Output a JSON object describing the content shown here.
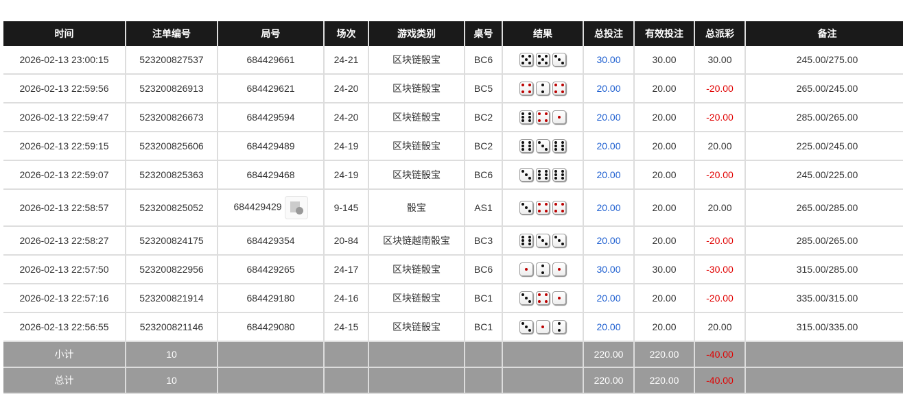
{
  "headers": [
    "时间",
    "注单编号",
    "局号",
    "场次",
    "游戏类别",
    "桌号",
    "结果",
    "总投注",
    "有效投注",
    "总派彩",
    "备注"
  ],
  "rows": [
    {
      "time": "2026-02-13 23:00:15",
      "bet_id": "523200827537",
      "round": "684429661",
      "session": "24-21",
      "game": "区块链骰宝",
      "table": "BC6",
      "dice": [
        5,
        5,
        3
      ],
      "bet": "30.00",
      "valid": "30.00",
      "payout": "30.00",
      "payout_neg": false,
      "note": "245.00/275.00"
    },
    {
      "time": "2026-02-13 22:59:56",
      "bet_id": "523200826913",
      "round": "684429621",
      "session": "24-20",
      "game": "区块链骰宝",
      "table": "BC5",
      "dice": [
        4,
        2,
        4
      ],
      "bet": "20.00",
      "valid": "20.00",
      "payout": "-20.00",
      "payout_neg": true,
      "note": "265.00/245.00"
    },
    {
      "time": "2026-02-13 22:59:47",
      "bet_id": "523200826673",
      "round": "684429594",
      "session": "24-20",
      "game": "区块链骰宝",
      "table": "BC2",
      "dice": [
        6,
        4,
        1
      ],
      "bet": "20.00",
      "valid": "20.00",
      "payout": "-20.00",
      "payout_neg": true,
      "note": "285.00/265.00"
    },
    {
      "time": "2026-02-13 22:59:15",
      "bet_id": "523200825606",
      "round": "684429489",
      "session": "24-19",
      "game": "区块链骰宝",
      "table": "BC2",
      "dice": [
        6,
        3,
        6
      ],
      "bet": "20.00",
      "valid": "20.00",
      "payout": "20.00",
      "payout_neg": false,
      "note": "225.00/245.00"
    },
    {
      "time": "2026-02-13 22:59:07",
      "bet_id": "523200825363",
      "round": "684429468",
      "session": "24-19",
      "game": "区块链骰宝",
      "table": "BC6",
      "dice": [
        3,
        6,
        6
      ],
      "bet": "20.00",
      "valid": "20.00",
      "payout": "-20.00",
      "payout_neg": true,
      "note": "245.00/225.00"
    },
    {
      "time": "2026-02-13 22:58:57",
      "bet_id": "523200825052",
      "round": "684429429",
      "session": "9-145",
      "game": "骰宝",
      "table": "AS1",
      "dice": [
        3,
        4,
        4
      ],
      "bet": "20.00",
      "valid": "20.00",
      "payout": "20.00",
      "payout_neg": false,
      "note": "265.00/285.00",
      "video": true
    },
    {
      "time": "2026-02-13 22:58:27",
      "bet_id": "523200824175",
      "round": "684429354",
      "session": "20-84",
      "game": "区块链越南骰宝",
      "table": "BC3",
      "dice": [
        6,
        3,
        3
      ],
      "bet": "20.00",
      "valid": "20.00",
      "payout": "-20.00",
      "payout_neg": true,
      "note": "285.00/265.00"
    },
    {
      "time": "2026-02-13 22:57:50",
      "bet_id": "523200822956",
      "round": "684429265",
      "session": "24-17",
      "game": "区块链骰宝",
      "table": "BC6",
      "dice": [
        1,
        2,
        1
      ],
      "bet": "30.00",
      "valid": "30.00",
      "payout": "-30.00",
      "payout_neg": true,
      "note": "315.00/285.00"
    },
    {
      "time": "2026-02-13 22:57:16",
      "bet_id": "523200821914",
      "round": "684429180",
      "session": "24-16",
      "game": "区块链骰宝",
      "table": "BC1",
      "dice": [
        3,
        4,
        1
      ],
      "bet": "20.00",
      "valid": "20.00",
      "payout": "-20.00",
      "payout_neg": true,
      "note": "335.00/315.00"
    },
    {
      "time": "2026-02-13 22:56:55",
      "bet_id": "523200821146",
      "round": "684429080",
      "session": "24-15",
      "game": "区块链骰宝",
      "table": "BC1",
      "dice": [
        3,
        1,
        2
      ],
      "bet": "20.00",
      "valid": "20.00",
      "payout": "20.00",
      "payout_neg": false,
      "note": "315.00/335.00"
    }
  ],
  "summary": [
    {
      "label": "小计",
      "count": "10",
      "bet": "220.00",
      "valid": "220.00",
      "payout": "-40.00"
    },
    {
      "label": "总计",
      "count": "10",
      "bet": "220.00",
      "valid": "220.00",
      "payout": "-40.00"
    }
  ],
  "colors": {
    "header_bg": "#1a1a1a",
    "bet_blue": "#1e5fd0",
    "negative_red": "#e00000",
    "summary_bg": "#9b9b9b"
  }
}
